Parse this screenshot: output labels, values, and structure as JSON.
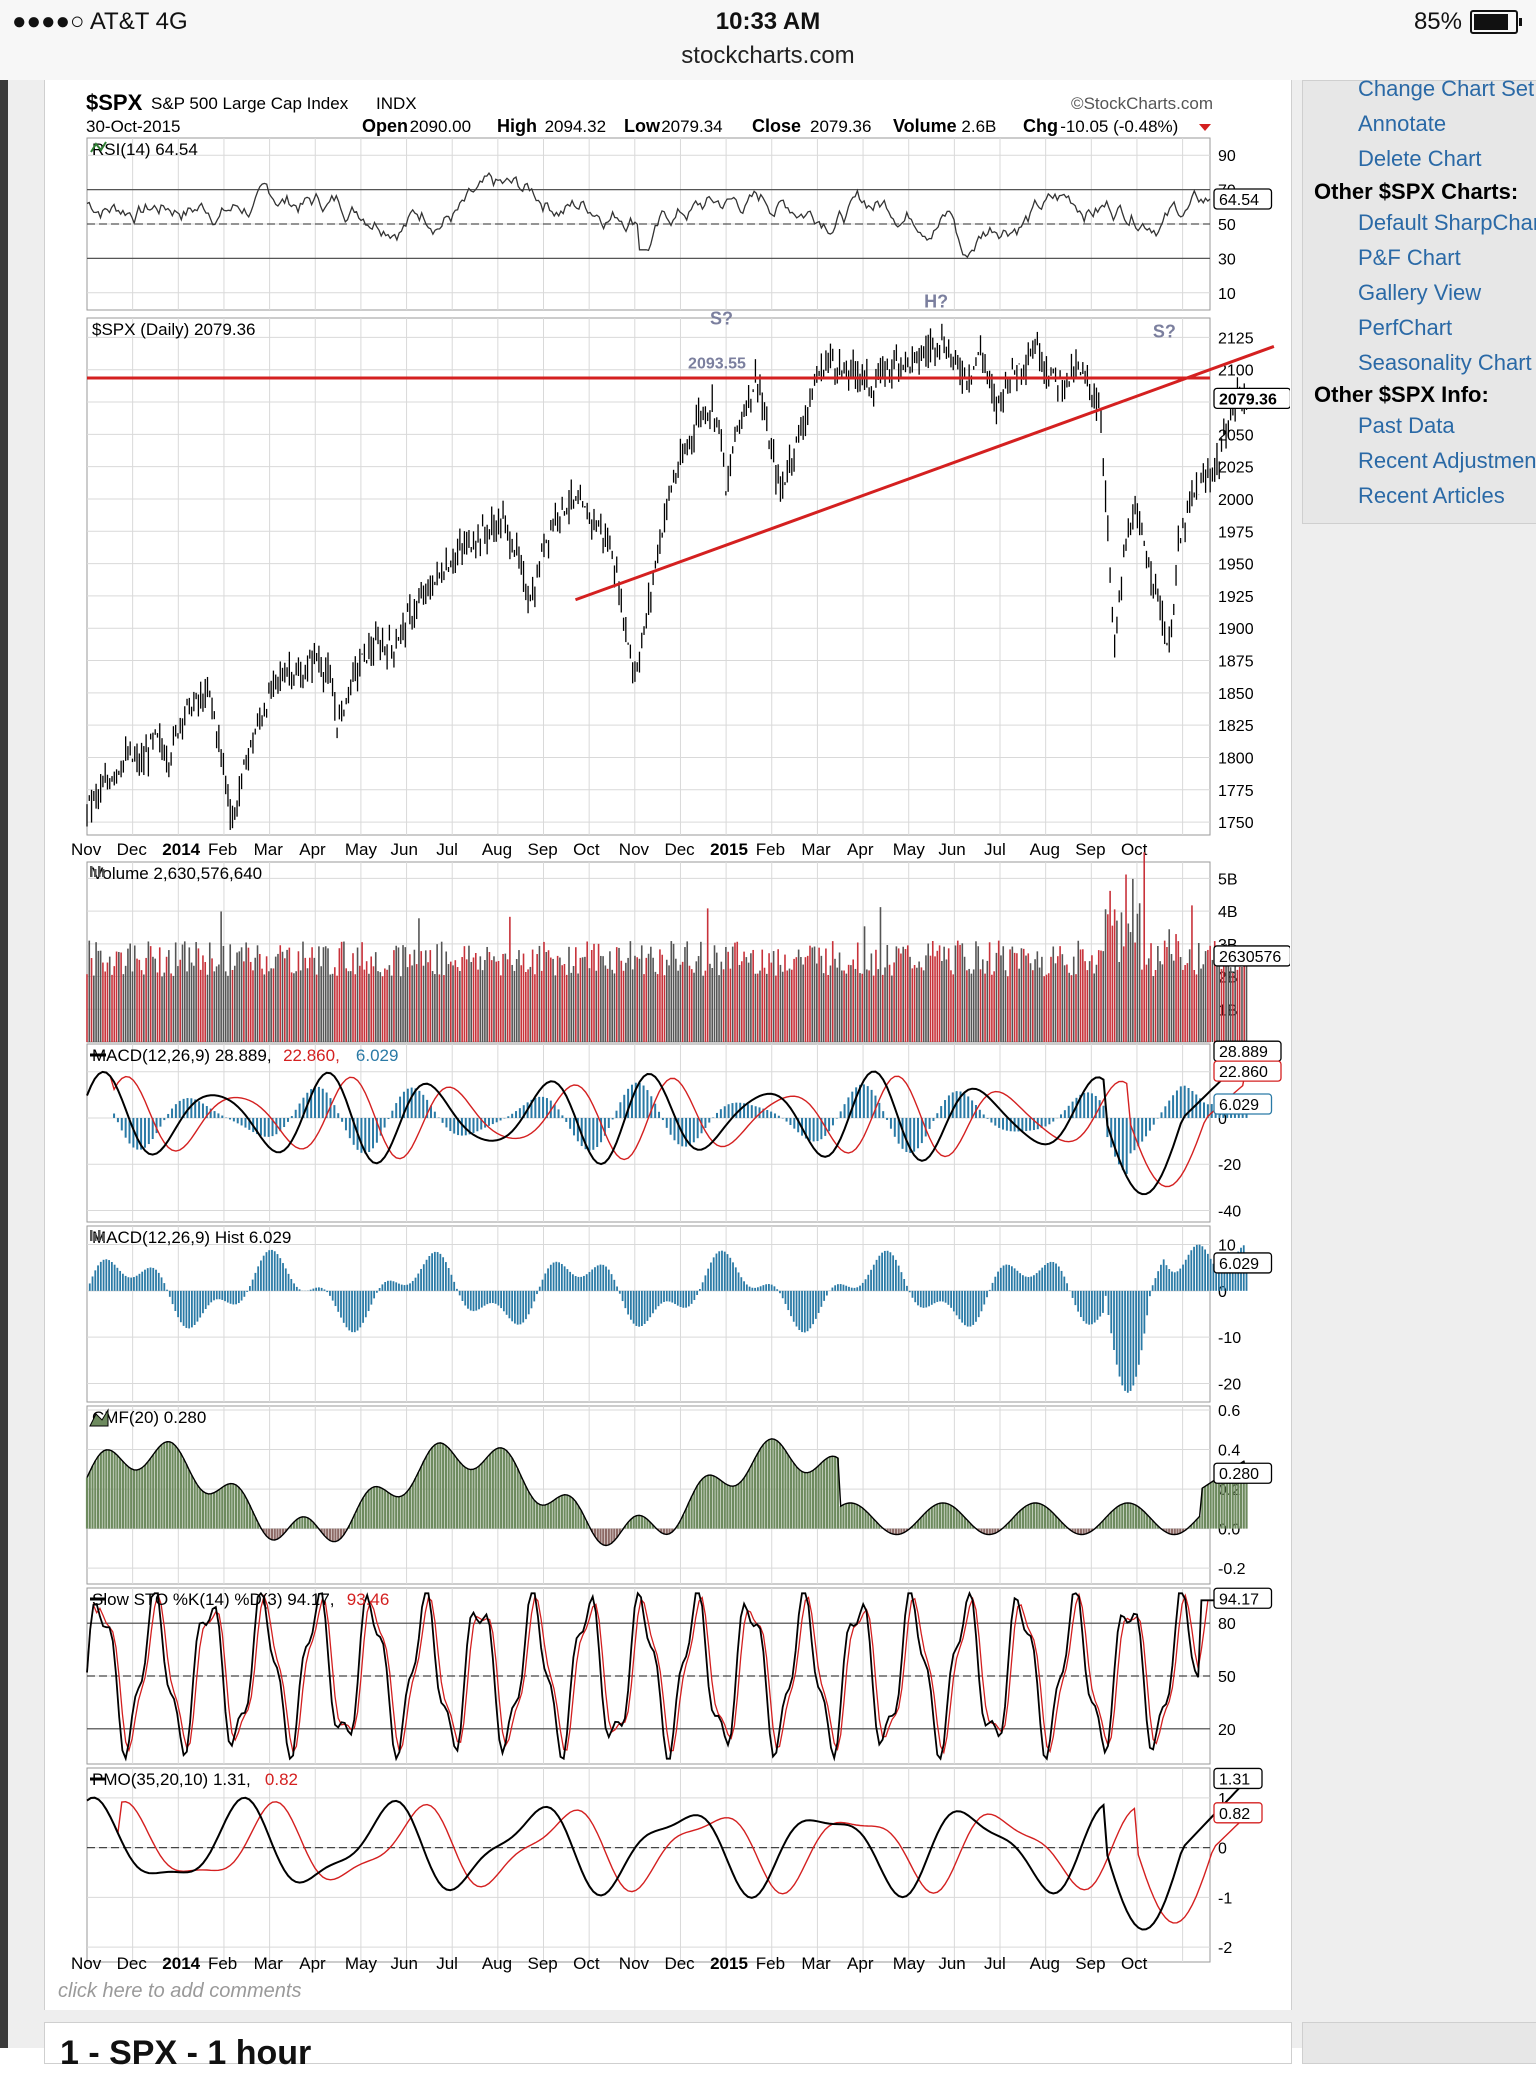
{
  "status_bar": {
    "carrier": "●●●●○ AT&T   4G",
    "time": "10:33 AM",
    "url": "stockcharts.com",
    "battery": "85%"
  },
  "chart_header": {
    "symbol": "$SPX",
    "name": "S&P 500 Large Cap Index",
    "exchange": "INDX",
    "watermark": "©StockCharts.com",
    "date": "30-Oct-2015",
    "open_label": "Open",
    "open": "2090.00",
    "high_label": "High",
    "high": "2094.32",
    "low_label": "Low",
    "low": "2079.34",
    "close_label": "Close",
    "close": "2079.36",
    "volume_label": "Volume",
    "volume": "2.6B",
    "chg_label": "Chg",
    "chg": "-10.05 (-0.48%)"
  },
  "side_panel": {
    "links_top": [
      "Change Chart Set",
      "Annotate",
      "Delete Chart"
    ],
    "heading_charts": "Other $SPX Charts:",
    "links_charts": [
      "Default SharpChart",
      "P&F Chart",
      "Gallery View",
      "PerfChart",
      "Seasonality Chart"
    ],
    "heading_info": "Other $SPX Info:",
    "links_info": [
      "Past Data",
      "Recent Adjustments",
      "Recent Articles"
    ]
  },
  "comments_text": "click here to add comments",
  "below_title": "1 - SPX - 1 hour",
  "chart_data": [
    {
      "type": "line",
      "panel": "rsi",
      "title": "RSI(14) 64.54",
      "last_value": "64.54",
      "ticks": [
        "90",
        "70",
        "50",
        "30",
        "10"
      ],
      "levels": [
        70,
        50,
        30
      ],
      "ylim": [
        0,
        100
      ]
    },
    {
      "type": "candlestick",
      "panel": "price",
      "title": "$SPX (Daily) 2079.36",
      "last_value": "2079.36",
      "ylim": [
        1740,
        2140
      ],
      "ticks": [
        "2125",
        "2100",
        "2075",
        "2050",
        "2025",
        "2000",
        "1975",
        "1950",
        "1925",
        "1900",
        "1875",
        "1850",
        "1825",
        "1800",
        "1775",
        "1750"
      ],
      "x_labels": [
        "Nov",
        "Dec",
        "2014",
        "Feb",
        "Mar",
        "Apr",
        "May",
        "Jun",
        "Jul",
        "Aug",
        "Sep",
        "Oct",
        "Nov",
        "Dec",
        "2015",
        "Feb",
        "Mar",
        "Apr",
        "May",
        "Jun",
        "Jul",
        "Aug",
        "Sep",
        "Oct"
      ],
      "x_bold": [
        "2014",
        "2015"
      ],
      "annotations": [
        {
          "text": "S?",
          "month_index": 13.9,
          "y": 2135
        },
        {
          "text": "2093.55",
          "month_index": 13.8,
          "y": 2101
        },
        {
          "text": "H?",
          "month_index": 18.6,
          "y": 2148
        },
        {
          "text": "S?",
          "month_index": 23.6,
          "y": 2125
        }
      ],
      "horizontal_line": 2093.55,
      "trendline": [
        {
          "month_index": 10.7,
          "y": 1922
        },
        {
          "month_index": 26.0,
          "y": 2118
        }
      ],
      "path": [
        [
          0,
          1763
        ],
        [
          0.3,
          1772
        ],
        [
          0.6,
          1790
        ],
        [
          0.9,
          1800
        ],
        [
          1.2,
          1795
        ],
        [
          1.5,
          1815
        ],
        [
          1.8,
          1800
        ],
        [
          2.1,
          1835
        ],
        [
          2.4,
          1842
        ],
        [
          2.7,
          1848
        ],
        [
          3.0,
          1790
        ],
        [
          3.2,
          1750
        ],
        [
          3.5,
          1800
        ],
        [
          3.8,
          1830
        ],
        [
          4.1,
          1855
        ],
        [
          4.4,
          1870
        ],
        [
          4.7,
          1860
        ],
        [
          5.0,
          1880
        ],
        [
          5.3,
          1862
        ],
        [
          5.5,
          1825
        ],
        [
          5.8,
          1860
        ],
        [
          6.1,
          1880
        ],
        [
          6.4,
          1888
        ],
        [
          6.7,
          1885
        ],
        [
          7.0,
          1905
        ],
        [
          7.3,
          1920
        ],
        [
          7.6,
          1935
        ],
        [
          7.9,
          1950
        ],
        [
          8.2,
          1960
        ],
        [
          8.5,
          1970
        ],
        [
          8.8,
          1975
        ],
        [
          9.1,
          1983
        ],
        [
          9.4,
          1960
        ],
        [
          9.6,
          1930
        ],
        [
          9.8,
          1925
        ],
        [
          10.0,
          1965
        ],
        [
          10.3,
          1990
        ],
        [
          10.6,
          1998
        ],
        [
          10.9,
          1990
        ],
        [
          11.2,
          1980
        ],
        [
          11.5,
          1960
        ],
        [
          11.8,
          1900
        ],
        [
          12.0,
          1865
        ],
        [
          12.2,
          1895
        ],
        [
          12.5,
          1960
        ],
        [
          12.8,
          2010
        ],
        [
          13.1,
          2035
        ],
        [
          13.4,
          2065
        ],
        [
          13.7,
          2072
        ],
        [
          13.9,
          2050
        ],
        [
          14.0,
          2000
        ],
        [
          14.2,
          2050
        ],
        [
          14.5,
          2080
        ],
        [
          14.7,
          2095
        ],
        [
          14.9,
          2050
        ],
        [
          15.2,
          2005
        ],
        [
          15.4,
          2030
        ],
        [
          15.7,
          2060
        ],
        [
          16.0,
          2095
        ],
        [
          16.3,
          2110
        ],
        [
          16.6,
          2095
        ],
        [
          16.9,
          2100
        ],
        [
          17.2,
          2085
        ],
        [
          17.5,
          2100
        ],
        [
          17.8,
          2108
        ],
        [
          18.1,
          2105
        ],
        [
          18.4,
          2115
        ],
        [
          18.7,
          2125
        ],
        [
          19.0,
          2105
        ],
        [
          19.3,
          2095
        ],
        [
          19.6,
          2115
        ],
        [
          19.9,
          2070
        ],
        [
          20.2,
          2095
        ],
        [
          20.5,
          2105
        ],
        [
          20.8,
          2120
        ],
        [
          21.1,
          2095
        ],
        [
          21.4,
          2090
        ],
        [
          21.7,
          2100
        ],
        [
          22.0,
          2085
        ],
        [
          22.2,
          2070
        ],
        [
          22.4,
          1950
        ],
        [
          22.5,
          1880
        ],
        [
          22.7,
          1950
        ],
        [
          22.9,
          1990
        ],
        [
          23.2,
          1960
        ],
        [
          23.5,
          1920
        ],
        [
          23.7,
          1880
        ],
        [
          23.9,
          1960
        ],
        [
          24.2,
          2000
        ],
        [
          24.5,
          2015
        ],
        [
          24.8,
          2030
        ],
        [
          25.0,
          2060
        ],
        [
          25.2,
          2080
        ],
        [
          25.4,
          2079
        ]
      ]
    },
    {
      "type": "bar",
      "panel": "volume",
      "title": "Volume 2,630,576,640",
      "last_value": "2630576",
      "ticks": [
        "5B",
        "4B",
        "3B",
        "2B",
        "1B"
      ],
      "ylim": [
        0,
        5.5
      ]
    },
    {
      "type": "line",
      "panel": "macd",
      "title": "MACD(12,26,9) 28.889, 22.860, 6.029",
      "title_parts": {
        "main": "MACD(12,26,9) 28.889,",
        "signal": " 22.860,",
        "hist": " 6.029"
      },
      "last_values": {
        "macd": "28.889",
        "signal": "22.860",
        "hist": "6.029"
      },
      "ticks": [
        "20",
        "0",
        "-20",
        "-40"
      ],
      "ylim": [
        -45,
        32
      ]
    },
    {
      "type": "bar",
      "panel": "macd_hist",
      "title": "MACD(12,26,9) Hist 6.029",
      "last_value": "6.029",
      "ticks": [
        "10",
        "0",
        "-10",
        "-20"
      ],
      "ylim": [
        -24,
        14
      ]
    },
    {
      "type": "area",
      "panel": "cmf",
      "title": "CMF(20) 0.280",
      "last_value": "0.280",
      "ticks": [
        "0.6",
        "0.4",
        "0.2",
        "0.0",
        "-0.2"
      ],
      "ylim": [
        -0.28,
        0.62
      ]
    },
    {
      "type": "line",
      "panel": "sto",
      "title": "Slow STO %K(14) %D(3) 94.17, 93.46",
      "title_parts": {
        "main": "Slow STO %K(14) %D(3) 94.17,",
        "d": " 93.46"
      },
      "last_value": "94.17",
      "ticks": [
        "80",
        "50",
        "20"
      ],
      "ylim": [
        0,
        100
      ]
    },
    {
      "type": "line",
      "panel": "pmo",
      "title": "PMO(35,20,10) 1.31, 0.82",
      "title_parts": {
        "main": "PMO(35,20,10) 1.31,",
        "signal": " 0.82"
      },
      "last_values": {
        "pmo": "1.31",
        "signal": "0.82"
      },
      "ticks": [
        "1",
        "0",
        "-1",
        "-2"
      ],
      "ylim": [
        -2.3,
        1.6
      ]
    }
  ],
  "colors": {
    "red": "#d42020",
    "black": "#000000",
    "blue": "#2a7aa6",
    "green": "#6d8a5e",
    "brown": "#8d6a66",
    "grid": "#d9d9d9"
  }
}
